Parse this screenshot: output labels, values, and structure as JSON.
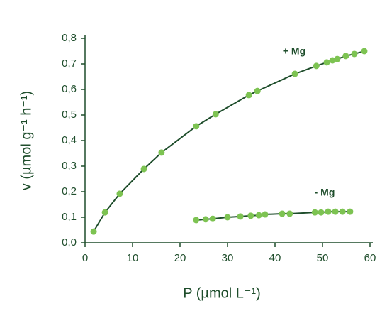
{
  "chart_data": {
    "type": "scatter",
    "x_label": "P (µmol L⁻¹)",
    "y_label": "v (µmol g⁻¹ h⁻¹)",
    "xlim": [
      0,
      60
    ],
    "xticks": [
      0,
      10,
      20,
      30,
      40,
      50,
      60
    ],
    "ylim": [
      0,
      0.8
    ],
    "yticks": [
      {
        "value": 0,
        "label": "0,0"
      },
      {
        "value": 0.1,
        "label": "0,1"
      },
      {
        "value": 0.2,
        "label": "0,2"
      },
      {
        "value": 0.3,
        "label": "0,3"
      },
      {
        "value": 0.4,
        "label": "0,4"
      },
      {
        "value": 0.5,
        "label": "0,5"
      },
      {
        "value": 0.6,
        "label": "0,6"
      },
      {
        "value": 0.7,
        "label": "0,7"
      },
      {
        "value": 0.8,
        "label": "0,8"
      }
    ],
    "line_color": "#1e4d2b",
    "series": [
      {
        "name": "+ Mg",
        "color": "#7dc352",
        "x": [
          1.8,
          4.2,
          7.3,
          12.4,
          16.1,
          23.4,
          27.5,
          34.5,
          36.3,
          44.2,
          48.7,
          50.9,
          52.1,
          53.1,
          54.9,
          56.7,
          58.8
        ],
        "values": [
          0.044,
          0.119,
          0.192,
          0.289,
          0.353,
          0.456,
          0.503,
          0.578,
          0.594,
          0.661,
          0.692,
          0.706,
          0.714,
          0.719,
          0.731,
          0.739,
          0.75
        ]
      },
      {
        "name": "- Mg",
        "color": "#7dc352",
        "x": [
          23.4,
          25.4,
          26.9,
          30.0,
          32.7,
          34.9,
          36.6,
          37.9,
          41.5,
          43.1,
          48.4,
          49.7,
          51.2,
          52.7,
          54.2,
          55.8
        ],
        "values": [
          0.089,
          0.092,
          0.094,
          0.1,
          0.103,
          0.106,
          0.108,
          0.111,
          0.114,
          0.114,
          0.119,
          0.119,
          0.122,
          0.122,
          0.122,
          0.122
        ]
      }
    ]
  }
}
